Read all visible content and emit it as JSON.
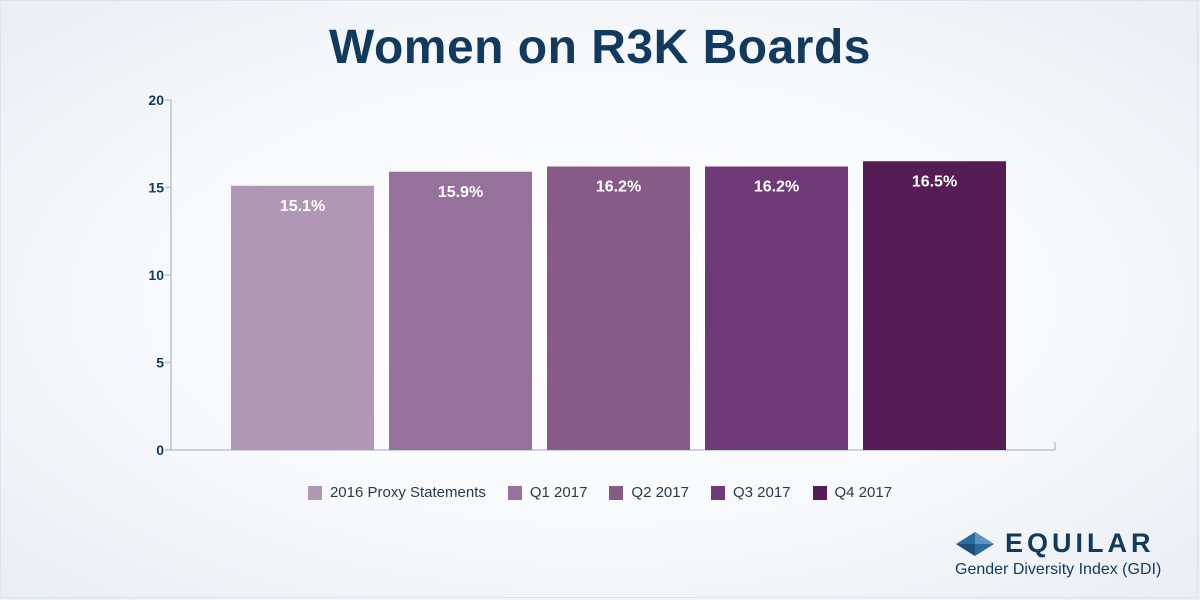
{
  "chart_data": {
    "type": "bar",
    "title": "Women on R3K Boards",
    "categories": [
      "2016 Proxy Statements",
      "Q1 2017",
      "Q2 2017",
      "Q3 2017",
      "Q4 2017"
    ],
    "values": [
      15.1,
      15.9,
      16.2,
      16.2,
      16.5
    ],
    "data_labels": [
      "15.1%",
      "15.9%",
      "16.2%",
      "16.2%",
      "16.5%"
    ],
    "colors": [
      "#b098b5",
      "#96719b",
      "#875b88",
      "#6f3a78",
      "#561c55"
    ],
    "ylim": [
      0,
      20
    ],
    "yticks": [
      0,
      5,
      10,
      15,
      20
    ],
    "xlabel": "",
    "ylabel": "",
    "grid": false,
    "legend_position": "bottom"
  },
  "brand": {
    "name": "EQUILAR",
    "subtitle": "Gender Diversity Index (GDI)",
    "icon": "diamond-logo-icon"
  },
  "colors": {
    "title": "#123a5e",
    "axis": "#b8c6d4",
    "tick_label": "#123a5e",
    "data_label": "#ffffff"
  }
}
